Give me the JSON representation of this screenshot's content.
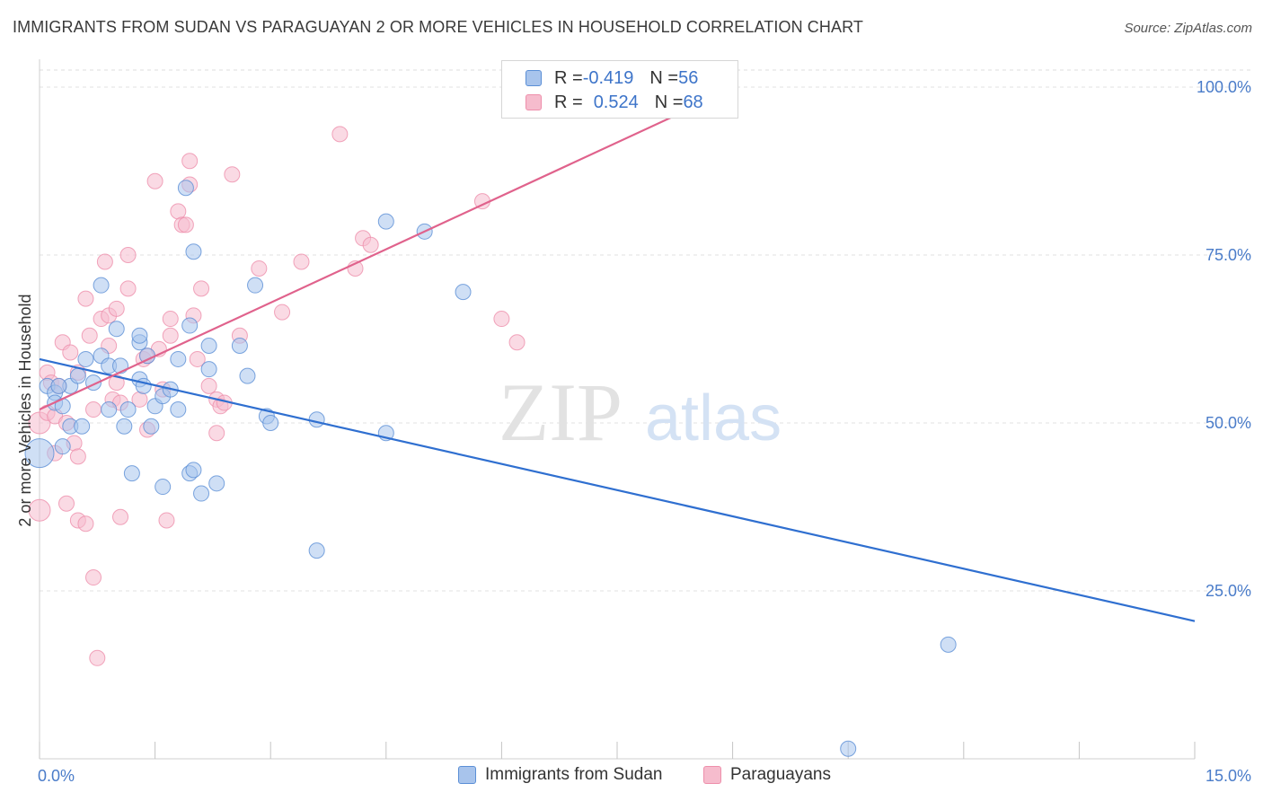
{
  "header": {
    "title": "IMMIGRANTS FROM SUDAN VS PARAGUAYAN 2 OR MORE VEHICLES IN HOUSEHOLD CORRELATION CHART",
    "source": "Source: ZipAtlas.com"
  },
  "watermark": {
    "zip": "ZIP",
    "atlas": "atlas"
  },
  "legend": {
    "rows": [
      {
        "r_label": "R = ",
        "r_value": "-0.419",
        "n_label": "N = ",
        "n_value": "56",
        "color": "#5b8fd6"
      },
      {
        "r_label": "R = ",
        "r_value": "0.524",
        "n_label": "N = ",
        "n_value": "68",
        "color": "#ee8fab"
      }
    ]
  },
  "colors": {
    "sudan_fill": "#a8c4ec",
    "sudan_stroke": "#5b8fd6",
    "sudan_line": "#2f6fd0",
    "paraguay_fill": "#f6bccd",
    "paraguay_stroke": "#ee8fab",
    "paraguay_line": "#e0628c",
    "axis_text": "#4a7cc9"
  },
  "chart_data": {
    "type": "scatter",
    "title": "IMMIGRANTS FROM SUDAN VS PARAGUAYAN 2 OR MORE VEHICLES IN HOUSEHOLD CORRELATION CHART",
    "xlabel": "",
    "ylabel": "2 or more Vehicles in Household",
    "xlim": [
      0,
      15
    ],
    "ylim": [
      0,
      102
    ],
    "x_tick_labels": [
      "0.0%",
      "15.0%"
    ],
    "y_ticks": [
      25,
      50,
      75,
      100
    ],
    "y_tick_labels": [
      "25.0%",
      "50.0%",
      "75.0%",
      "100.0%"
    ],
    "grid": true,
    "legend_position": "bottom",
    "series": [
      {
        "name": "Immigrants from Sudan",
        "points": [
          [
            0.1,
            55.5
          ],
          [
            0.2,
            54.5
          ],
          [
            0.2,
            53
          ],
          [
            0.3,
            52.5
          ],
          [
            0.4,
            55.5
          ],
          [
            0.4,
            49.5
          ],
          [
            0.5,
            57
          ],
          [
            0.6,
            59.5
          ],
          [
            0.55,
            49.5
          ],
          [
            0.8,
            60
          ],
          [
            0.8,
            70.5
          ],
          [
            0.9,
            58.5
          ],
          [
            0.9,
            52
          ],
          [
            1.0,
            64
          ],
          [
            1.05,
            58.5
          ],
          [
            1.1,
            49.5
          ],
          [
            1.15,
            52
          ],
          [
            1.2,
            42.5
          ],
          [
            1.3,
            62
          ],
          [
            1.3,
            63
          ],
          [
            1.3,
            56.5
          ],
          [
            1.35,
            55.5
          ],
          [
            1.4,
            60
          ],
          [
            1.5,
            52.5
          ],
          [
            1.45,
            49.5
          ],
          [
            1.6,
            54
          ],
          [
            1.6,
            40.5
          ],
          [
            1.7,
            55
          ],
          [
            1.8,
            52
          ],
          [
            1.8,
            59.5
          ],
          [
            1.9,
            85
          ],
          [
            1.95,
            64.5
          ],
          [
            1.95,
            42.5
          ],
          [
            2.0,
            43
          ],
          [
            2.0,
            75.5
          ],
          [
            2.1,
            39.5
          ],
          [
            2.2,
            58
          ],
          [
            2.2,
            61.5
          ],
          [
            2.3,
            41
          ],
          [
            2.6,
            61.5
          ],
          [
            2.7,
            57
          ],
          [
            2.8,
            70.5
          ],
          [
            2.95,
            51
          ],
          [
            3.0,
            50
          ],
          [
            3.6,
            50.5
          ],
          [
            3.6,
            31
          ],
          [
            4.5,
            80
          ],
          [
            4.5,
            48.5
          ],
          [
            5.0,
            78.5
          ],
          [
            5.5,
            69.5
          ],
          [
            11.8,
            17
          ],
          [
            10.5,
            1.5
          ],
          [
            0.0,
            45.5
          ],
          [
            0.3,
            46.5
          ],
          [
            0.7,
            56
          ],
          [
            0.25,
            55.5
          ]
        ]
      },
      {
        "name": "Paraguayans",
        "points": [
          [
            0.0,
            50
          ],
          [
            0.0,
            37
          ],
          [
            0.1,
            51.5
          ],
          [
            0.1,
            57.5
          ],
          [
            0.15,
            56
          ],
          [
            0.2,
            51
          ],
          [
            0.2,
            45.5
          ],
          [
            0.25,
            55.5
          ],
          [
            0.3,
            62
          ],
          [
            0.35,
            50
          ],
          [
            0.35,
            38
          ],
          [
            0.4,
            60.5
          ],
          [
            0.45,
            47
          ],
          [
            0.5,
            45
          ],
          [
            0.5,
            35.5
          ],
          [
            0.5,
            57.5
          ],
          [
            0.6,
            68.5
          ],
          [
            0.6,
            35
          ],
          [
            0.65,
            63
          ],
          [
            0.7,
            27
          ],
          [
            0.7,
            52
          ],
          [
            0.75,
            15
          ],
          [
            0.8,
            65.5
          ],
          [
            0.85,
            74
          ],
          [
            0.9,
            66
          ],
          [
            0.9,
            61.5
          ],
          [
            0.95,
            53.5
          ],
          [
            1.0,
            67
          ],
          [
            1.0,
            56
          ],
          [
            1.05,
            53
          ],
          [
            1.05,
            36
          ],
          [
            1.15,
            70
          ],
          [
            1.15,
            75
          ],
          [
            1.3,
            53.5
          ],
          [
            1.35,
            59.5
          ],
          [
            1.4,
            49
          ],
          [
            1.4,
            60
          ],
          [
            1.5,
            86
          ],
          [
            1.55,
            61
          ],
          [
            1.6,
            55
          ],
          [
            1.65,
            35.5
          ],
          [
            1.7,
            63
          ],
          [
            1.7,
            65.5
          ],
          [
            1.8,
            81.5
          ],
          [
            1.85,
            79.5
          ],
          [
            1.9,
            79.5
          ],
          [
            1.95,
            89
          ],
          [
            1.95,
            85.5
          ],
          [
            2.0,
            66
          ],
          [
            2.05,
            59.5
          ],
          [
            2.1,
            70
          ],
          [
            2.2,
            55.5
          ],
          [
            2.3,
            53.5
          ],
          [
            2.3,
            48.5
          ],
          [
            2.35,
            52.5
          ],
          [
            2.4,
            53
          ],
          [
            2.5,
            87
          ],
          [
            2.6,
            63
          ],
          [
            2.85,
            73
          ],
          [
            3.15,
            66.5
          ],
          [
            3.4,
            74
          ],
          [
            3.9,
            93
          ],
          [
            4.1,
            73
          ],
          [
            4.2,
            77.5
          ],
          [
            4.3,
            76.5
          ],
          [
            5.75,
            83
          ],
          [
            6.0,
            65.5
          ],
          [
            6.2,
            62
          ]
        ]
      }
    ],
    "trend_lines": [
      {
        "series": "Immigrants from Sudan",
        "from": [
          0,
          59.5
        ],
        "to": [
          15,
          20.5
        ]
      },
      {
        "series": "Paraguayans",
        "from": [
          0,
          52
        ],
        "to": [
          8.3,
          96
        ]
      }
    ]
  },
  "bottom_legend": {
    "items": [
      {
        "label": "Immigrants from Sudan"
      },
      {
        "label": "Paraguayans"
      }
    ]
  }
}
